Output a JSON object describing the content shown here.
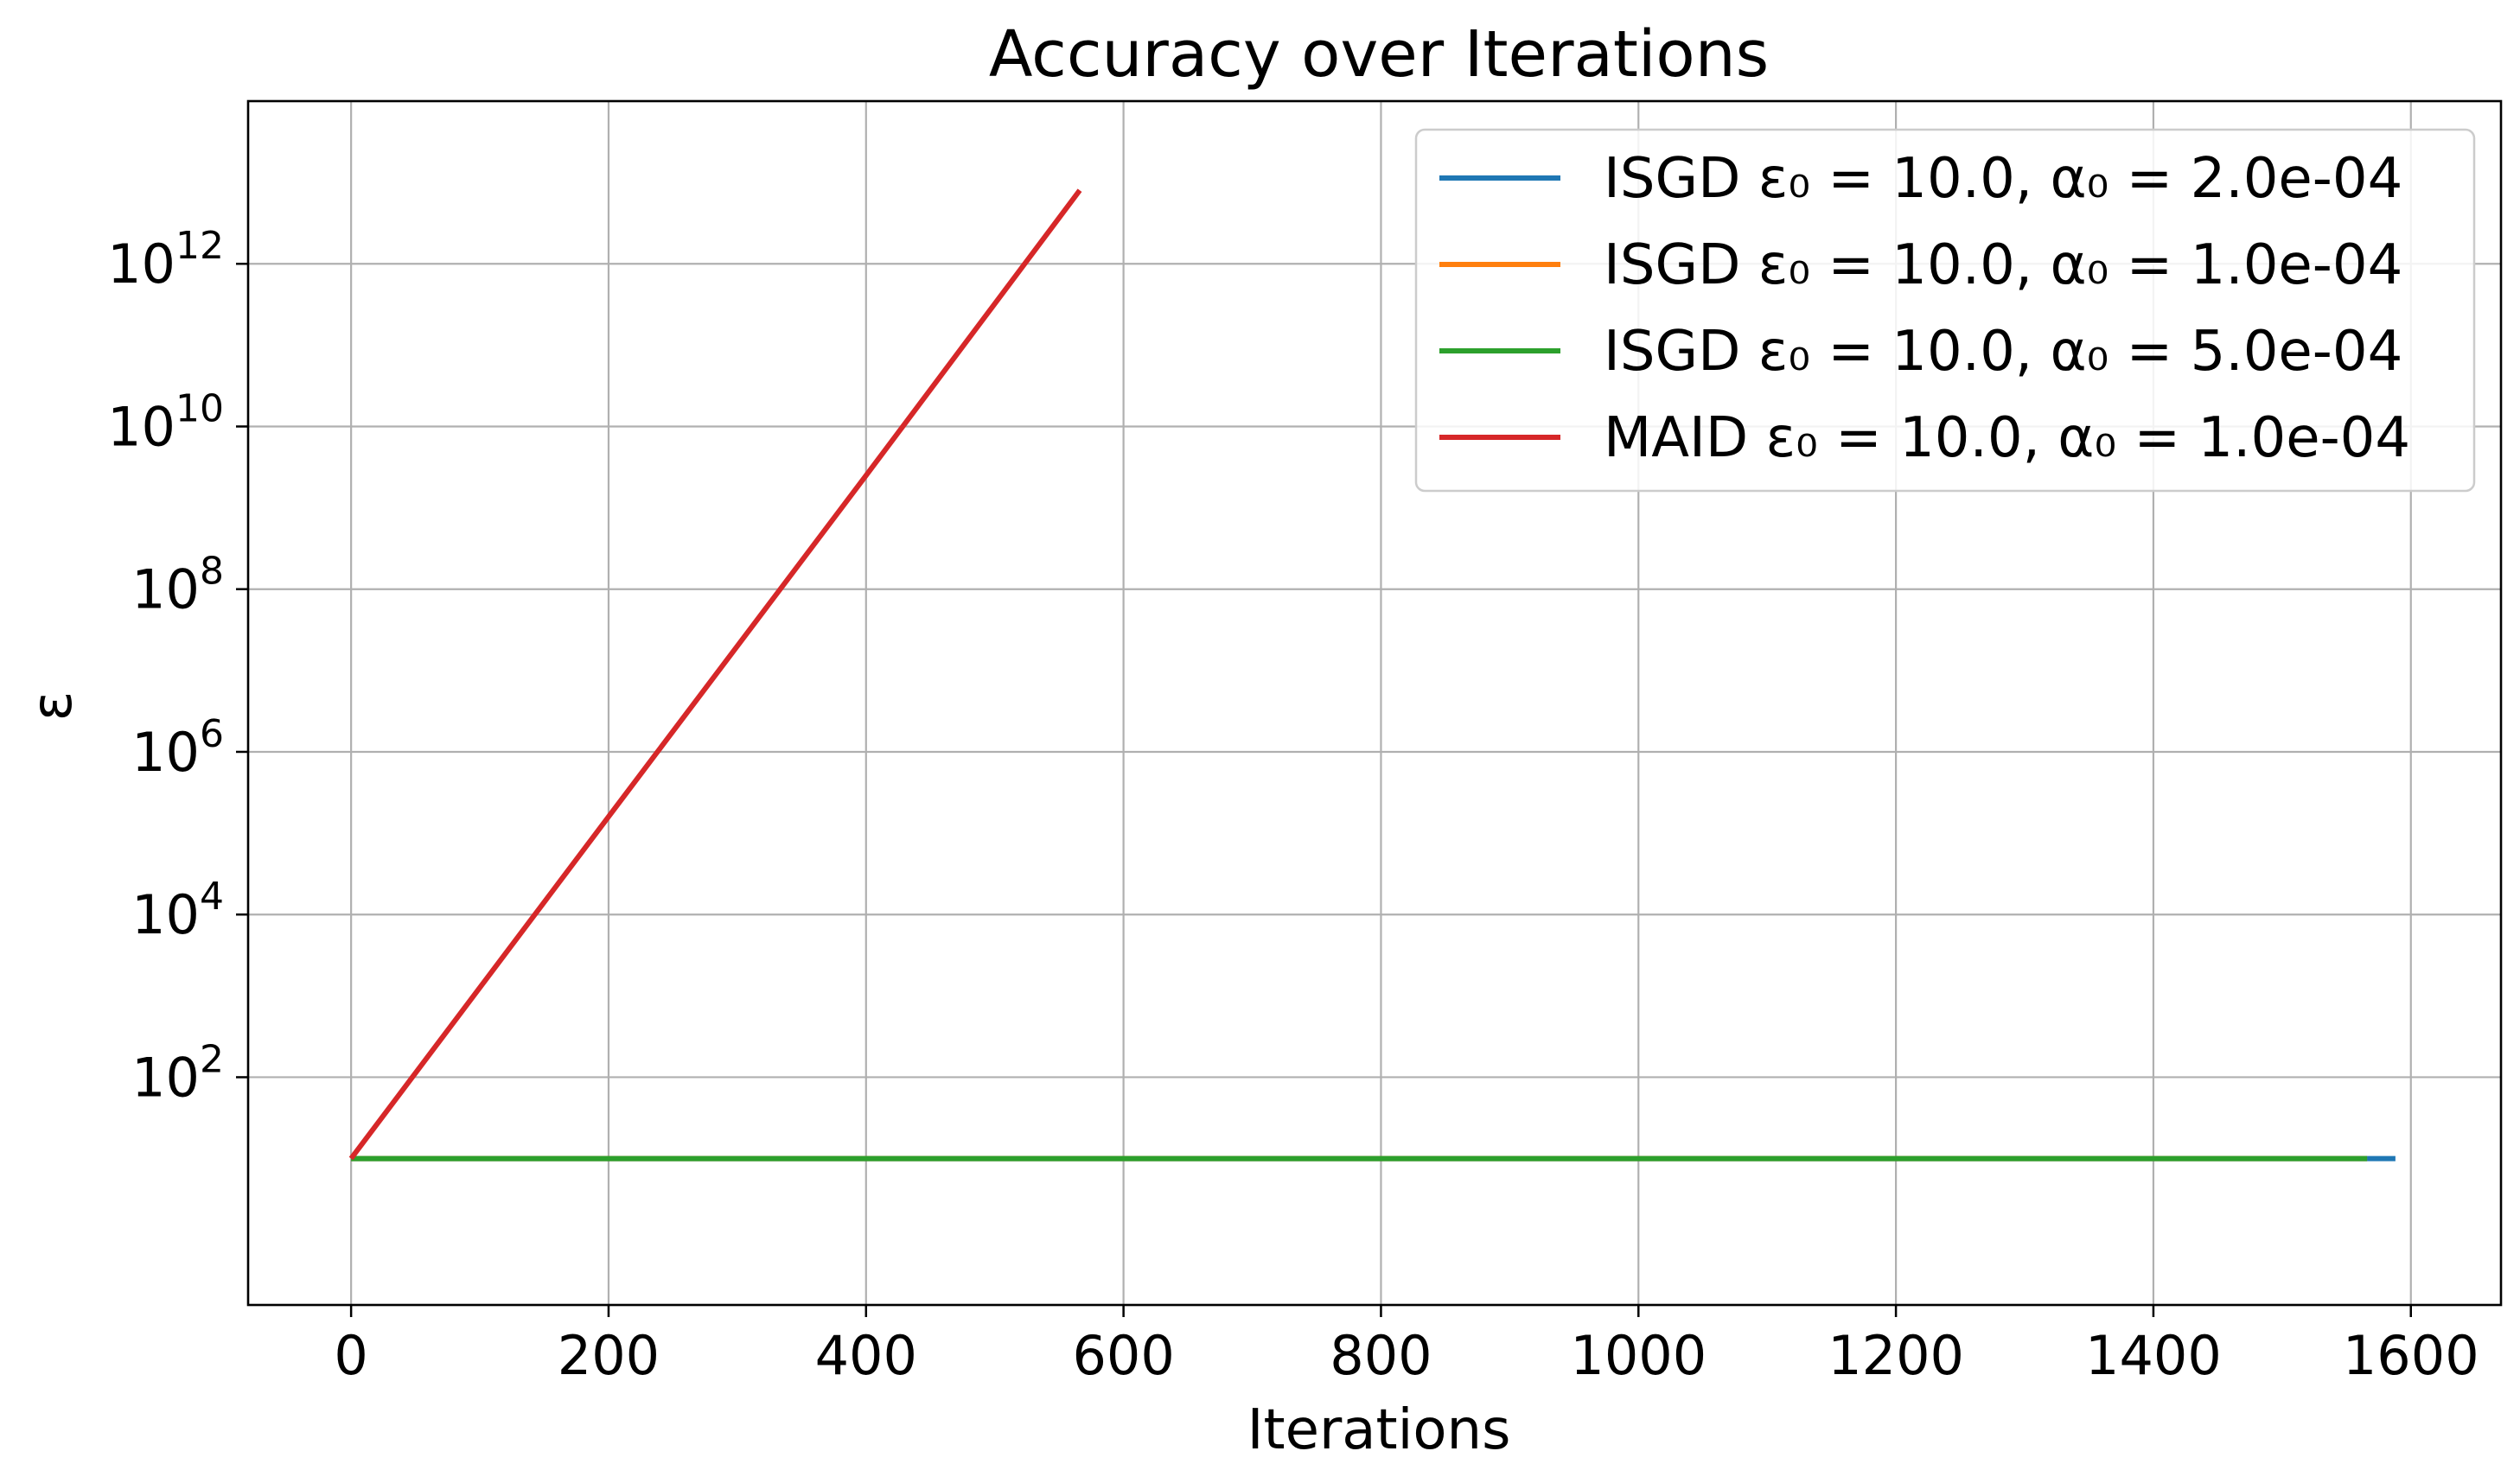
{
  "chart_data": {
    "type": "line",
    "title": "Accuracy over Iterations",
    "xlabel": "Iterations",
    "ylabel": "ε",
    "yscale": "log",
    "xlim": [
      -80,
      1670
    ],
    "ylim_exp": [
      -0.8,
      14.0
    ],
    "x_ticks": [
      {
        "value": 0,
        "label": "0"
      },
      {
        "value": 200,
        "label": "200"
      },
      {
        "value": 400,
        "label": "400"
      },
      {
        "value": 600,
        "label": "600"
      },
      {
        "value": 800,
        "label": "800"
      },
      {
        "value": 1000,
        "label": "1000"
      },
      {
        "value": 1200,
        "label": "1200"
      },
      {
        "value": 1400,
        "label": "1400"
      },
      {
        "value": 1600,
        "label": "1600"
      }
    ],
    "y_ticks": [
      {
        "exp": 2,
        "base": "10",
        "sup": "2"
      },
      {
        "exp": 4,
        "base": "10",
        "sup": "4"
      },
      {
        "exp": 6,
        "base": "10",
        "sup": "6"
      },
      {
        "exp": 8,
        "base": "10",
        "sup": "8"
      },
      {
        "exp": 10,
        "base": "10",
        "sup": "10"
      },
      {
        "exp": 12,
        "base": "10",
        "sup": "12"
      }
    ],
    "grid": true,
    "legend_position": "top-right",
    "series": [
      {
        "name": "ISGD ε₀ = 10.0, α₀ = 2.0e-04",
        "color": "#1f77b4",
        "points": [
          [
            0,
            10
          ],
          [
            1588,
            10
          ]
        ]
      },
      {
        "name": "ISGD ε₀ = 10.0, α₀ = 1.0e-04",
        "color": "#ff7f0e",
        "points": [
          [
            0,
            10
          ],
          [
            1566,
            10
          ]
        ]
      },
      {
        "name": "ISGD ε₀ = 10.0, α₀ = 5.0e-04",
        "color": "#2ca02c",
        "points": [
          [
            0,
            10
          ],
          [
            1566,
            10
          ]
        ]
      },
      {
        "name": "MAID ε₀ = 10.0, α₀ = 1.0e-04",
        "color": "#d62728",
        "points": [
          [
            0,
            10
          ],
          [
            200,
            160000.0
          ],
          [
            400,
            2500000000.0
          ],
          [
            566,
            8000000000000.0
          ]
        ]
      }
    ]
  }
}
